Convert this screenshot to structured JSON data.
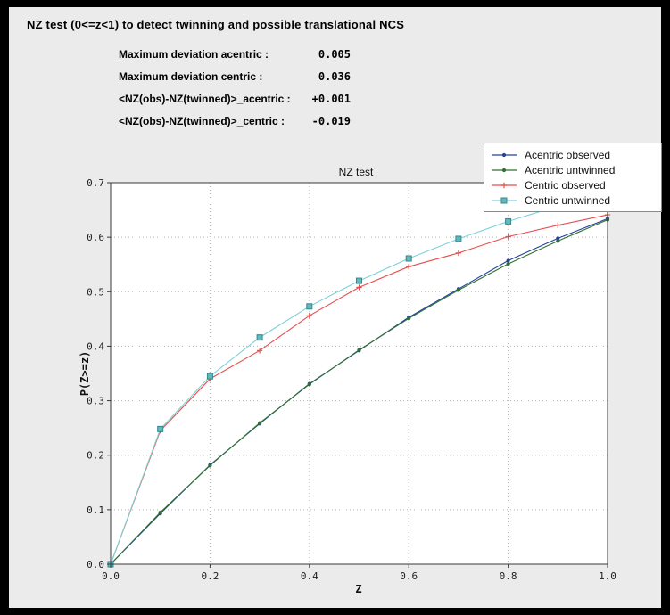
{
  "panel": {
    "title": "NZ test (0<=z<1) to detect twinning and possible translational NCS",
    "stats": [
      {
        "label": "Maximum deviation acentric :",
        "value": "0.005"
      },
      {
        "label": "Maximum deviation centric :",
        "value": "0.036"
      },
      {
        "label": "<NZ(obs)-NZ(twinned)>_acentric :",
        "value": "+0.001"
      },
      {
        "label": "<NZ(obs)-NZ(twinned)>_centric :",
        "value": "-0.019"
      }
    ]
  },
  "colors": {
    "window_border": "#000000",
    "panel_bg": "#ebebeb",
    "plot_bg": "#ffffff",
    "grid": "#b5b5b5",
    "frame": "#3a3a3a"
  },
  "chart_data": {
    "type": "line",
    "title": "NZ test",
    "xlabel": "Z",
    "ylabel": "P(Z>=z)",
    "xlim": [
      0.0,
      1.0
    ],
    "ylim": [
      0.0,
      0.7
    ],
    "grid": true,
    "legend_position": "upper right",
    "xticks": [
      0.0,
      0.2,
      0.4,
      0.6,
      0.8,
      1.0
    ],
    "xtick_labels": [
      "0.0",
      "0.2",
      "0.4",
      "0.6",
      "0.8",
      "1.0"
    ],
    "yticks": [
      0.0,
      0.1,
      0.2,
      0.3,
      0.4,
      0.5,
      0.6,
      0.7
    ],
    "ytick_labels": [
      "0.0",
      "0.1",
      "0.2",
      "0.3",
      "0.4",
      "0.5",
      "0.6",
      "0.7"
    ],
    "x": [
      0.0,
      0.1,
      0.2,
      0.3,
      0.4,
      0.5,
      0.6,
      0.7,
      0.8,
      0.9,
      1.0
    ],
    "series": [
      {
        "name": "Acentric observed",
        "color": "#24419b",
        "marker": "dot",
        "values": [
          0.0,
          0.093,
          0.182,
          0.258,
          0.331,
          0.392,
          0.453,
          0.505,
          0.557,
          0.598,
          0.634
        ]
      },
      {
        "name": "Acentric untwinned",
        "color": "#30712f",
        "marker": "dot",
        "values": [
          0.0,
          0.095,
          0.181,
          0.259,
          0.33,
          0.393,
          0.451,
          0.503,
          0.551,
          0.593,
          0.632
        ]
      },
      {
        "name": "Centric observed",
        "color": "#e84d4d",
        "marker": "plus",
        "values": [
          0.0,
          0.245,
          0.34,
          0.392,
          0.456,
          0.508,
          0.546,
          0.571,
          0.601,
          0.622,
          0.641
        ]
      },
      {
        "name": "Centric untwinned",
        "color": "#7ad2d6",
        "marker": "square",
        "marker_fill": "#5fb9bd",
        "marker_edge": "#35888e",
        "values": [
          0.0,
          0.248,
          0.345,
          0.416,
          0.473,
          0.52,
          0.561,
          0.597,
          0.629,
          0.657,
          0.683
        ]
      }
    ]
  }
}
